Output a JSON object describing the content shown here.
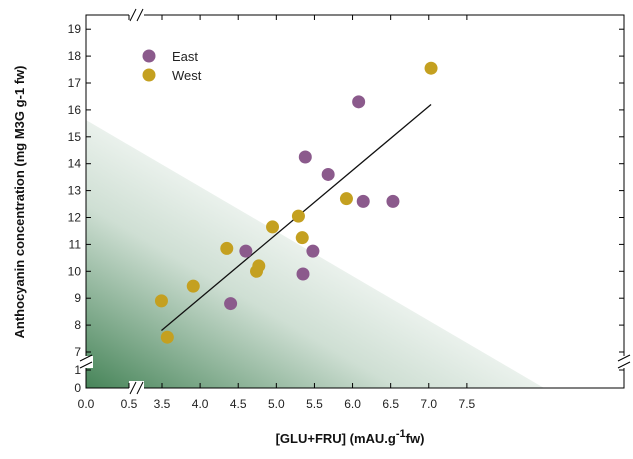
{
  "chart_data": {
    "type": "scatter",
    "title": "",
    "xlabel_main": "[GLU+FRU] (mAU.g",
    "xlabel_sup": "-1",
    "xlabel_tail": "fw)",
    "ylabel": "Anthocyanin concentration (mg M3G g-1 fw)",
    "x_ticks": [
      "0.0",
      "0.5",
      "3.5",
      "4.0",
      "4.5",
      "5.0",
      "5.5",
      "6.0",
      "6.5",
      "7.0",
      "7.5"
    ],
    "y_ticks": [
      "0",
      "1",
      "7",
      "8",
      "9",
      "10",
      "11",
      "12",
      "13",
      "14",
      "15",
      "16",
      "17",
      "18",
      "19"
    ],
    "x_axis_break": [
      0.5,
      3.5
    ],
    "y_axis_break": [
      1,
      7
    ],
    "xlim": [
      0,
      7.5
    ],
    "ylim": [
      0,
      19
    ],
    "grid": false,
    "legend_position": "top-left",
    "series": [
      {
        "name": "East",
        "color": "#8b5a8c",
        "points": [
          {
            "x": 4.4,
            "y": 8.8
          },
          {
            "x": 4.6,
            "y": 10.75
          },
          {
            "x": 5.35,
            "y": 9.9
          },
          {
            "x": 5.38,
            "y": 14.25
          },
          {
            "x": 5.48,
            "y": 10.75
          },
          {
            "x": 5.68,
            "y": 13.6
          },
          {
            "x": 6.08,
            "y": 16.3
          },
          {
            "x": 6.14,
            "y": 12.6
          },
          {
            "x": 6.53,
            "y": 12.6
          }
        ]
      },
      {
        "name": "West",
        "color": "#c4a020",
        "points": [
          {
            "x": 3.45,
            "y": 8.9
          },
          {
            "x": 3.57,
            "y": 7.55
          },
          {
            "x": 3.91,
            "y": 9.45
          },
          {
            "x": 4.35,
            "y": 10.85
          },
          {
            "x": 4.74,
            "y": 10.0
          },
          {
            "x": 4.77,
            "y": 10.2
          },
          {
            "x": 4.95,
            "y": 11.65
          },
          {
            "x": 5.29,
            "y": 12.05
          },
          {
            "x": 5.34,
            "y": 11.25
          },
          {
            "x": 5.92,
            "y": 12.7
          },
          {
            "x": 7.03,
            "y": 17.55
          }
        ]
      }
    ],
    "regression_line": {
      "x": [
        3.45,
        7.03
      ],
      "y": [
        7.8,
        16.2
      ],
      "color": "#111111"
    },
    "background_gradient_color": "#3d7e50"
  }
}
